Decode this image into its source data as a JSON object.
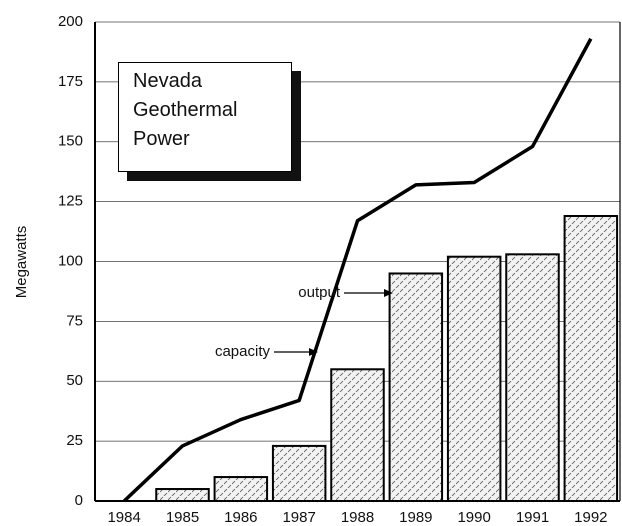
{
  "chart_data": {
    "type": "bar",
    "title": "Nevada Geothermal Power",
    "y_label": "Megawatts",
    "categories": [
      "1984",
      "1985",
      "1986",
      "1987",
      "1988",
      "1989",
      "1990",
      "1991",
      "1992"
    ],
    "series": [
      {
        "name": "output",
        "type": "bar",
        "color": "#000000",
        "values": [
          0,
          5,
          10,
          23,
          55,
          95,
          102,
          103,
          119
        ]
      },
      {
        "name": "capacity",
        "type": "line",
        "color": "#000000",
        "values": [
          0,
          23,
          34,
          42,
          117,
          132,
          133,
          148,
          193
        ]
      }
    ],
    "ylim": [
      0,
      200
    ],
    "yticks": [
      0,
      25,
      50,
      75,
      100,
      125,
      150,
      175,
      200
    ],
    "grid": true
  }
}
